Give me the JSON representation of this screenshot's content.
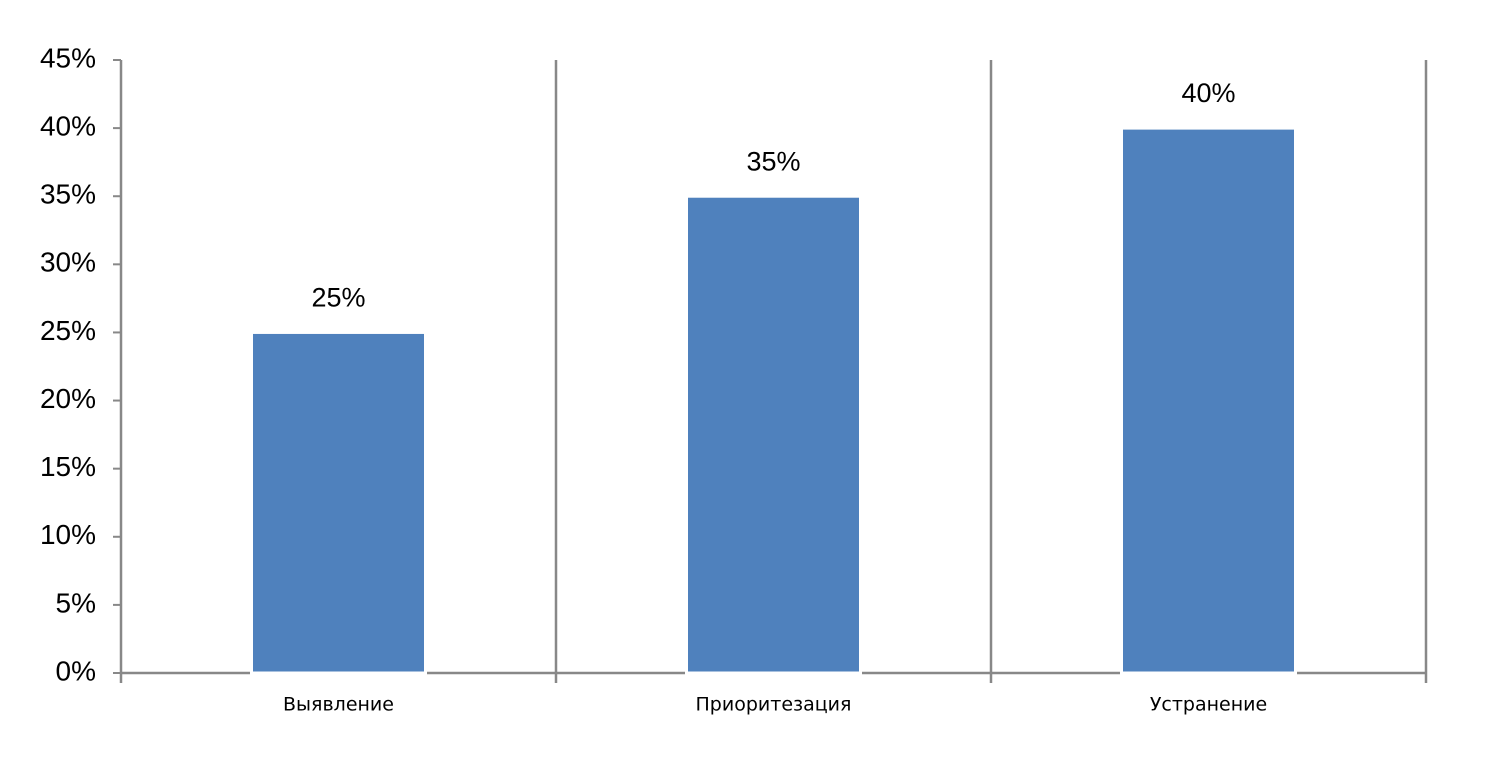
{
  "chart_data": {
    "type": "bar",
    "categories": [
      "Выявление",
      "Приоритезация",
      "Устранение"
    ],
    "values": [
      25,
      35,
      40
    ],
    "value_labels": [
      "25%",
      "35%",
      "40%"
    ],
    "color": "#4f81bd",
    "ylim": [
      0,
      45
    ],
    "yticks": [
      {
        "value": 0,
        "label": "0%"
      },
      {
        "value": 5,
        "label": "5%"
      },
      {
        "value": 10,
        "label": "10%"
      },
      {
        "value": 15,
        "label": "15%"
      },
      {
        "value": 20,
        "label": "20%"
      },
      {
        "value": 25,
        "label": "25%"
      },
      {
        "value": 30,
        "label": "30%"
      },
      {
        "value": 35,
        "label": "35%"
      },
      {
        "value": 40,
        "label": "40%"
      },
      {
        "value": 45,
        "label": "45%"
      }
    ]
  }
}
